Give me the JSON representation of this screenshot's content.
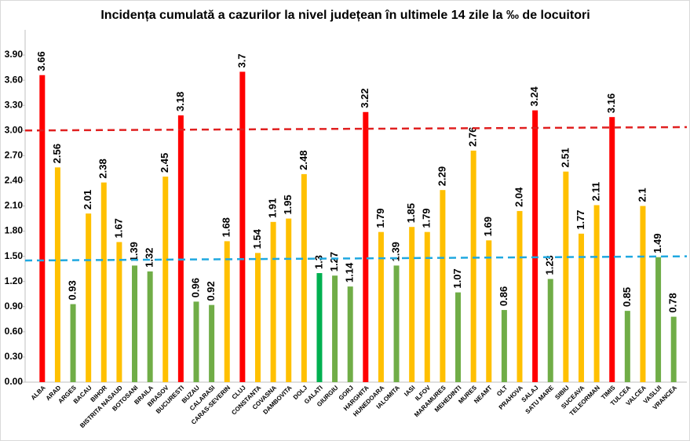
{
  "chart_data": {
    "type": "bar",
    "title": "Incidența cumulată a cazurilor la nivel județean în ultimele 14 zile la ‰ de locuitori",
    "categories": [
      "ALBA",
      "ARAD",
      "ARGES",
      "BACAU",
      "BIHOR",
      "BISTRITA NASAUD",
      "BOTOSANI",
      "BRAILA",
      "BRASOV",
      "BUCURESTI",
      "BUZAU",
      "CALARASI",
      "CARAS-SEVERIN",
      "CLUJ",
      "CONSTANTA",
      "COVASNA",
      "DAMBOVITA",
      "DOLJ",
      "GALATI",
      "GIURGIU",
      "GORJ",
      "HARGHITA",
      "HUNEDOARA",
      "IALOMITA",
      "IASI",
      "ILFOV",
      "MARAMURES",
      "MEHEDINTI",
      "MURES",
      "NEAMT",
      "OLT",
      "PRAHOVA",
      "SALAJ",
      "SATU MARE",
      "SIBIU",
      "SUCEAVA",
      "TELEORMAN",
      "TIMIS",
      "TULCEA",
      "VALCEA",
      "VASLUI",
      "VRANCEA"
    ],
    "values": [
      3.66,
      2.56,
      0.93,
      2.01,
      2.38,
      1.67,
      1.39,
      1.32,
      2.45,
      3.18,
      0.96,
      0.92,
      1.68,
      3.7,
      1.54,
      1.91,
      1.95,
      2.48,
      1.3,
      1.27,
      1.14,
      3.22,
      1.79,
      1.39,
      1.85,
      1.79,
      2.29,
      1.07,
      2.76,
      1.69,
      0.86,
      2.04,
      3.24,
      1.23,
      2.51,
      1.77,
      2.11,
      3.16,
      0.85,
      2.1,
      1.49,
      0.78
    ],
    "colors": [
      "#ff0000",
      "#ffc000",
      "#70ad47",
      "#ffc000",
      "#ffc000",
      "#ffc000",
      "#70ad47",
      "#70ad47",
      "#ffc000",
      "#ff0000",
      "#70ad47",
      "#70ad47",
      "#ffc000",
      "#ff0000",
      "#ffc000",
      "#ffc000",
      "#ffc000",
      "#ffc000",
      "#00b050",
      "#70ad47",
      "#70ad47",
      "#ff0000",
      "#ffc000",
      "#70ad47",
      "#ffc000",
      "#ffc000",
      "#ffc000",
      "#70ad47",
      "#ffc000",
      "#ffc000",
      "#70ad47",
      "#ffc000",
      "#ff0000",
      "#70ad47",
      "#ffc000",
      "#ffc000",
      "#ffc000",
      "#ff0000",
      "#70ad47",
      "#ffc000",
      "#70ad47",
      "#70ad47"
    ],
    "ylim": [
      0,
      4.2
    ],
    "yticks": [
      {
        "value": 0,
        "label": "0.00"
      },
      {
        "value": 0.3,
        "label": "0.30"
      },
      {
        "value": 0.6,
        "label": "0.60"
      },
      {
        "value": 0.9,
        "label": "0.90"
      },
      {
        "value": 1.2,
        "label": "1.20"
      },
      {
        "value": 1.5,
        "label": "1.50"
      },
      {
        "value": 1.8,
        "label": "1.80"
      },
      {
        "value": 2.1,
        "label": "2.10"
      },
      {
        "value": 2.4,
        "label": "2.40"
      },
      {
        "value": 2.7,
        "label": "2.70"
      },
      {
        "value": 3.0,
        "label": "3.00"
      },
      {
        "value": 3.3,
        "label": "3.30"
      },
      {
        "value": 3.6,
        "label": "3.60"
      },
      {
        "value": 3.9,
        "label": "3.90"
      }
    ],
    "trend_lines": [
      {
        "color": "#e02020",
        "values": [
          3.0,
          3.04
        ]
      },
      {
        "color": "#1fa8e0",
        "values": [
          1.45,
          1.5
        ]
      }
    ]
  }
}
